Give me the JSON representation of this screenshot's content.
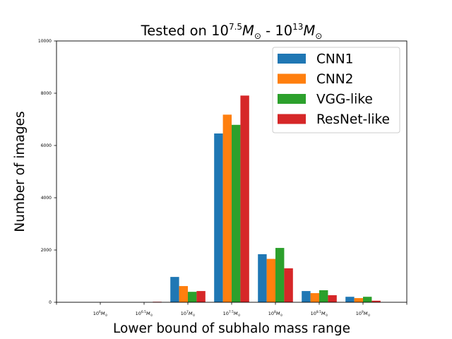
{
  "chart_data": {
    "type": "bar",
    "title": {
      "prefix": "Tested on 10",
      "sup1": "7.5",
      "mid": "M",
      "sub": "⊙",
      "sep": " - 10",
      "sup2": "13",
      "mid2": "M",
      "sub2": "⊙"
    },
    "xlabel": "Lower bound of subhalo mass range",
    "ylabel": "Number of images",
    "ylim": [
      0,
      10000
    ],
    "yticks": [
      "0",
      "2000",
      "4000",
      "6000",
      "8000",
      "10000"
    ],
    "categories": [
      {
        "base": "10",
        "exp": "6",
        "m": "M",
        "sun": "⊙"
      },
      {
        "base": "10",
        "exp": "6.5",
        "m": "M",
        "sun": "⊙"
      },
      {
        "base": "10",
        "exp": "7",
        "m": "M",
        "sun": "⊙"
      },
      {
        "base": "10",
        "exp": "7.5",
        "m": "M",
        "sun": "⊙"
      },
      {
        "base": "10",
        "exp": "8",
        "m": "M",
        "sun": "⊙"
      },
      {
        "base": "10",
        "exp": "8.5",
        "m": "M",
        "sun": "⊙"
      },
      {
        "base": "10",
        "exp": "9",
        "m": "M",
        "sun": "⊙"
      }
    ],
    "series": [
      {
        "name": "CNN1",
        "color": "#1f77b4",
        "values": [
          0,
          0,
          970,
          6460,
          1840,
          430,
          210
        ]
      },
      {
        "name": "CNN2",
        "color": "#ff7f0e",
        "values": [
          0,
          0,
          620,
          7180,
          1660,
          350,
          160
        ]
      },
      {
        "name": "VGG-like",
        "color": "#2ca02c",
        "values": [
          0,
          0,
          400,
          6790,
          2080,
          460,
          210
        ]
      },
      {
        "name": "ResNet-like",
        "color": "#d62728",
        "values": [
          0,
          20,
          430,
          7910,
          1300,
          270,
          60
        ]
      }
    ],
    "legend_position": "top-right"
  }
}
